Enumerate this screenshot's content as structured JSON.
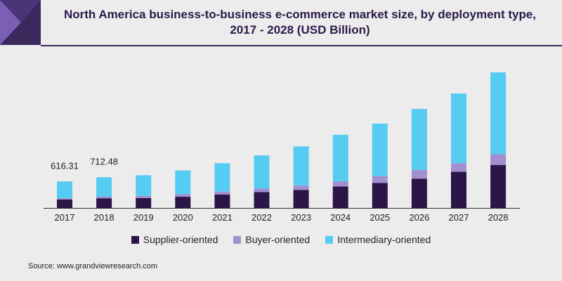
{
  "header": {
    "title_line1": "North America business-to-business e-commerce market size, by deployment type,",
    "title_line2": "2017 - 2028 (USD Billion)"
  },
  "colors": {
    "supplier": "#2c1547",
    "buyer": "#a28fd0",
    "intermediary": "#56ccf2",
    "brand": "#3a2a5c"
  },
  "source": "Source: www.grandviewresearch.com",
  "chart_data": {
    "type": "bar",
    "stacked": true,
    "categories": [
      "2017",
      "2018",
      "2019",
      "2020",
      "2021",
      "2022",
      "2023",
      "2024",
      "2025",
      "2026",
      "2027",
      "2028"
    ],
    "series": [
      {
        "name": "Supplier-oriented",
        "values": [
          195,
          225,
          230,
          260,
          310,
          370,
          420,
          500,
          580,
          680,
          840,
          1000
        ]
      },
      {
        "name": "Buyer-oriented",
        "values": [
          31,
          37,
          50,
          60,
          70,
          80,
          100,
          120,
          160,
          200,
          200,
          250
        ]
      },
      {
        "name": "Intermediary-oriented",
        "values": [
          390.31,
          450.48,
          480,
          550,
          660,
          770,
          910,
          1080,
          1220,
          1420,
          1620,
          1900
        ]
      }
    ],
    "data_labels": [
      {
        "category": "2017",
        "text": "616.31"
      },
      {
        "category": "2018",
        "text": "712.48"
      }
    ],
    "ylim": [
      0,
      3200
    ],
    "grid": false,
    "legend_position": "bottom"
  }
}
